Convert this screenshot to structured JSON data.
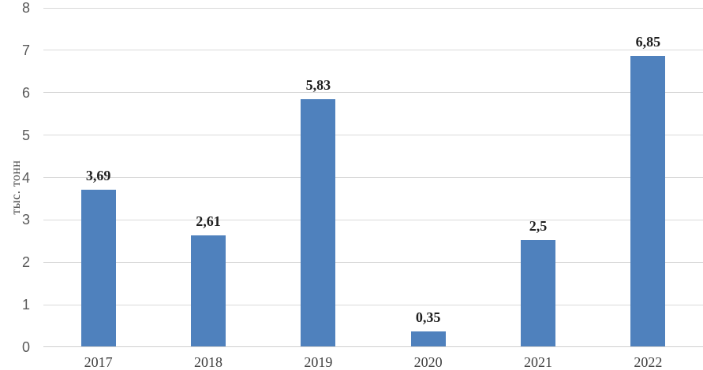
{
  "chart_data": {
    "type": "bar",
    "title": "",
    "xlabel": "",
    "ylabel": "тыс. тонн",
    "categories": [
      "2017",
      "2018",
      "2019",
      "2020",
      "2021",
      "2022"
    ],
    "values": [
      3.69,
      2.61,
      5.83,
      0.35,
      2.5,
      6.85
    ],
    "value_labels": [
      "3,69",
      "2,61",
      "5,83",
      "0,35",
      "2,5",
      "6,85"
    ],
    "ylim": [
      0,
      8
    ],
    "yticks": [
      0,
      1,
      2,
      3,
      4,
      5,
      6,
      7,
      8
    ],
    "grid": true,
    "legend_position": "none",
    "decimal_separator": ",",
    "colors": {
      "bar": "#4f81bd",
      "gridline": "#d9d9d9",
      "axis_line": "#cfcfcf",
      "y_tick_label": "#595959",
      "x_tick_label": "#404040",
      "data_label": "#1f1f1f",
      "background": "#ffffff"
    }
  }
}
